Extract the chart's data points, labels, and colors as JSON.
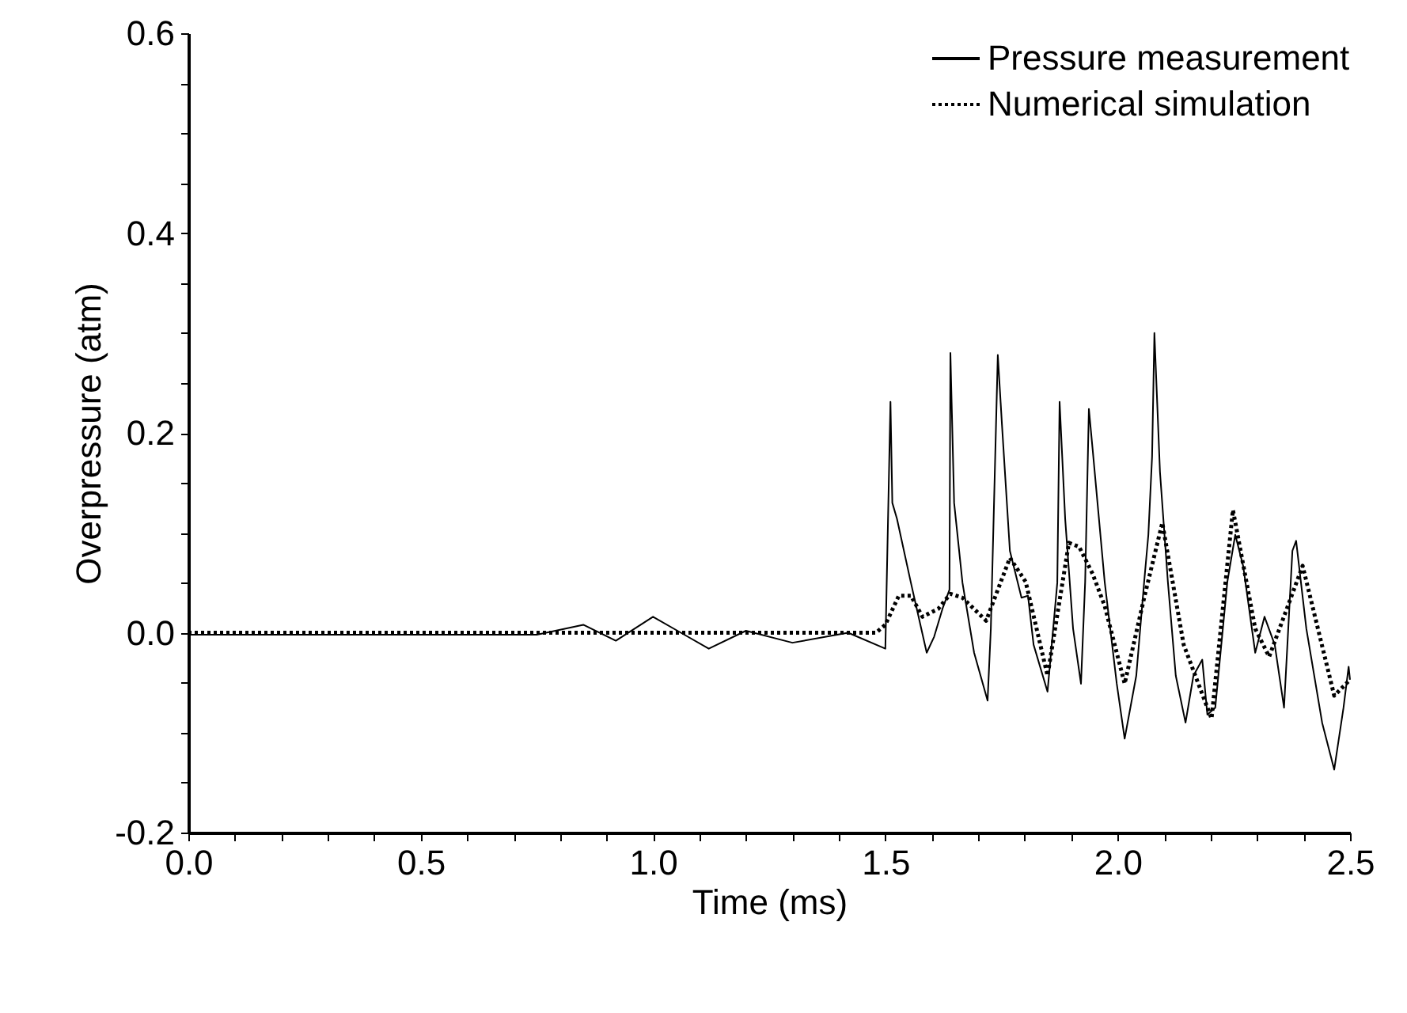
{
  "chart_data": {
    "type": "line",
    "xlabel": "Time (ms)",
    "ylabel": "Overpressure (atm)",
    "xlim": [
      0,
      2.5
    ],
    "ylim": [
      -0.2,
      0.6
    ],
    "xticks": [
      {
        "value": 0,
        "label": "0.0"
      },
      {
        "value": 0.1,
        "label": null
      },
      {
        "value": 0.2,
        "label": null
      },
      {
        "value": 0.3,
        "label": null
      },
      {
        "value": 0.4,
        "label": null
      },
      {
        "value": 0.5,
        "label": "0.5"
      },
      {
        "value": 0.6,
        "label": null
      },
      {
        "value": 0.7,
        "label": null
      },
      {
        "value": 0.8,
        "label": null
      },
      {
        "value": 0.9,
        "label": null
      },
      {
        "value": 1.0,
        "label": "1.0"
      },
      {
        "value": 1.1,
        "label": null
      },
      {
        "value": 1.2,
        "label": null
      },
      {
        "value": 1.3,
        "label": null
      },
      {
        "value": 1.4,
        "label": null
      },
      {
        "value": 1.5,
        "label": "1.5"
      },
      {
        "value": 1.6,
        "label": null
      },
      {
        "value": 1.7,
        "label": null
      },
      {
        "value": 1.8,
        "label": null
      },
      {
        "value": 1.9,
        "label": null
      },
      {
        "value": 2.0,
        "label": "2.0"
      },
      {
        "value": 2.1,
        "label": null
      },
      {
        "value": 2.2,
        "label": null
      },
      {
        "value": 2.3,
        "label": null
      },
      {
        "value": 2.4,
        "label": null
      },
      {
        "value": 2.5,
        "label": "2.5"
      }
    ],
    "yticks": [
      {
        "value": -0.2,
        "label": "-0.2"
      },
      {
        "value": -0.15,
        "label": null
      },
      {
        "value": -0.1,
        "label": null
      },
      {
        "value": -0.05,
        "label": null
      },
      {
        "value": 0,
        "label": "0.0"
      },
      {
        "value": 0.05,
        "label": null
      },
      {
        "value": 0.1,
        "label": null
      },
      {
        "value": 0.15,
        "label": null
      },
      {
        "value": 0.2,
        "label": "0.2"
      },
      {
        "value": 0.25,
        "label": null
      },
      {
        "value": 0.3,
        "label": null
      },
      {
        "value": 0.35,
        "label": null
      },
      {
        "value": 0.4,
        "label": "0.4"
      },
      {
        "value": 0.45,
        "label": null
      },
      {
        "value": 0.5,
        "label": null
      },
      {
        "value": 0.55,
        "label": null
      },
      {
        "value": 0.6,
        "label": "0.6"
      }
    ],
    "grid": false,
    "legend": "top right",
    "marker": "none",
    "series": [
      {
        "name": "Pressure measurement",
        "color": "#000000",
        "line_style": "solid",
        "x": [
          0,
          0.2,
          0.4,
          0.6,
          0.75,
          0.85,
          0.92,
          1.0,
          1.06,
          1.12,
          1.2,
          1.3,
          1.42,
          1.5,
          1.511,
          1.515,
          1.525,
          1.555,
          1.589,
          1.605,
          1.623,
          1.638,
          1.64,
          1.648,
          1.666,
          1.691,
          1.72,
          1.727,
          1.742,
          1.751,
          1.768,
          1.793,
          1.807,
          1.819,
          1.849,
          1.87,
          1.875,
          1.887,
          1.904,
          1.921,
          1.93,
          1.938,
          1.946,
          1.972,
          1.998,
          2.015,
          2.04,
          2.057,
          2.066,
          2.074,
          2.079,
          2.091,
          2.108,
          2.125,
          2.146,
          2.163,
          2.182,
          2.193,
          2.21,
          2.236,
          2.253,
          2.27,
          2.296,
          2.316,
          2.338,
          2.358,
          2.376,
          2.384,
          2.406,
          2.44,
          2.466,
          2.486,
          2.497,
          2.5
        ],
        "values": [
          -0.002,
          -0.002,
          -0.002,
          -0.002,
          -0.002,
          0.008,
          -0.008,
          0.016,
          0.0,
          -0.016,
          0.002,
          -0.01,
          0.0,
          -0.016,
          0.231,
          0.13,
          0.114,
          0.05,
          -0.02,
          -0.004,
          0.024,
          0.043,
          0.28,
          0.13,
          0.05,
          -0.02,
          -0.068,
          0.004,
          0.278,
          0.208,
          0.082,
          0.035,
          0.037,
          -0.012,
          -0.059,
          0.05,
          0.231,
          0.114,
          0.004,
          -0.051,
          0.051,
          0.224,
          0.184,
          0.051,
          -0.051,
          -0.106,
          -0.043,
          0.051,
          0.098,
          0.176,
          0.3,
          0.161,
          0.051,
          -0.043,
          -0.09,
          -0.043,
          -0.027,
          -0.082,
          -0.075,
          0.051,
          0.098,
          0.067,
          -0.02,
          0.016,
          -0.012,
          -0.075,
          0.082,
          0.092,
          0.004,
          -0.09,
          -0.137,
          -0.075,
          -0.034,
          -0.047
        ]
      },
      {
        "name": "Numerical simulation",
        "color": "#000000",
        "line_style": "dotted",
        "x": [
          0,
          1.48,
          1.5,
          1.529,
          1.555,
          1.58,
          1.614,
          1.64,
          1.666,
          1.717,
          1.768,
          1.802,
          1.849,
          1.895,
          1.917,
          1.946,
          1.972,
          2.015,
          2.057,
          2.096,
          2.142,
          2.202,
          2.248,
          2.296,
          2.326,
          2.398,
          2.466,
          2.5
        ],
        "values": [
          0,
          0,
          0.008,
          0.037,
          0.037,
          0.016,
          0.024,
          0.039,
          0.035,
          0.012,
          0.075,
          0.051,
          -0.043,
          0.09,
          0.086,
          0.059,
          0.027,
          -0.051,
          0.035,
          0.11,
          -0.012,
          -0.086,
          0.123,
          0.004,
          -0.024,
          0.067,
          -0.063,
          -0.047
        ]
      }
    ]
  }
}
